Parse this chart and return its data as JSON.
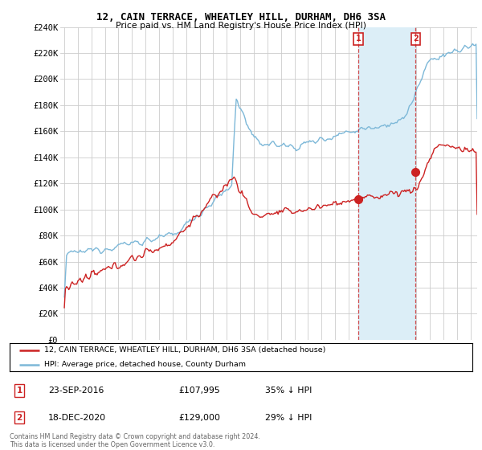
{
  "title": "12, CAIN TERRACE, WHEATLEY HILL, DURHAM, DH6 3SA",
  "subtitle": "Price paid vs. HM Land Registry's House Price Index (HPI)",
  "legend_line1": "12, CAIN TERRACE, WHEATLEY HILL, DURHAM, DH6 3SA (detached house)",
  "legend_line2": "HPI: Average price, detached house, County Durham",
  "annotation1_label": "1",
  "annotation1_date": "23-SEP-2016",
  "annotation1_price": "£107,995",
  "annotation1_text": "35% ↓ HPI",
  "annotation2_label": "2",
  "annotation2_date": "18-DEC-2020",
  "annotation2_price": "£129,000",
  "annotation2_text": "29% ↓ HPI",
  "copyright_text": "Contains HM Land Registry data © Crown copyright and database right 2024.\nThis data is licensed under the Open Government Licence v3.0.",
  "hpi_color": "#7db8d8",
  "hpi_fill_color": "#dceef7",
  "price_color": "#cc2222",
  "annotation_color": "#cc2222",
  "background_color": "#ffffff",
  "grid_color": "#cccccc",
  "ylim": [
    0,
    240000
  ],
  "yticks": [
    0,
    20000,
    40000,
    60000,
    80000,
    100000,
    120000,
    140000,
    160000,
    180000,
    200000,
    220000,
    240000
  ],
  "xstart": 1995,
  "xend": 2025,
  "t1_year": 2016.72,
  "t2_year": 2020.96,
  "p1_price": 107995,
  "p2_price": 129000
}
